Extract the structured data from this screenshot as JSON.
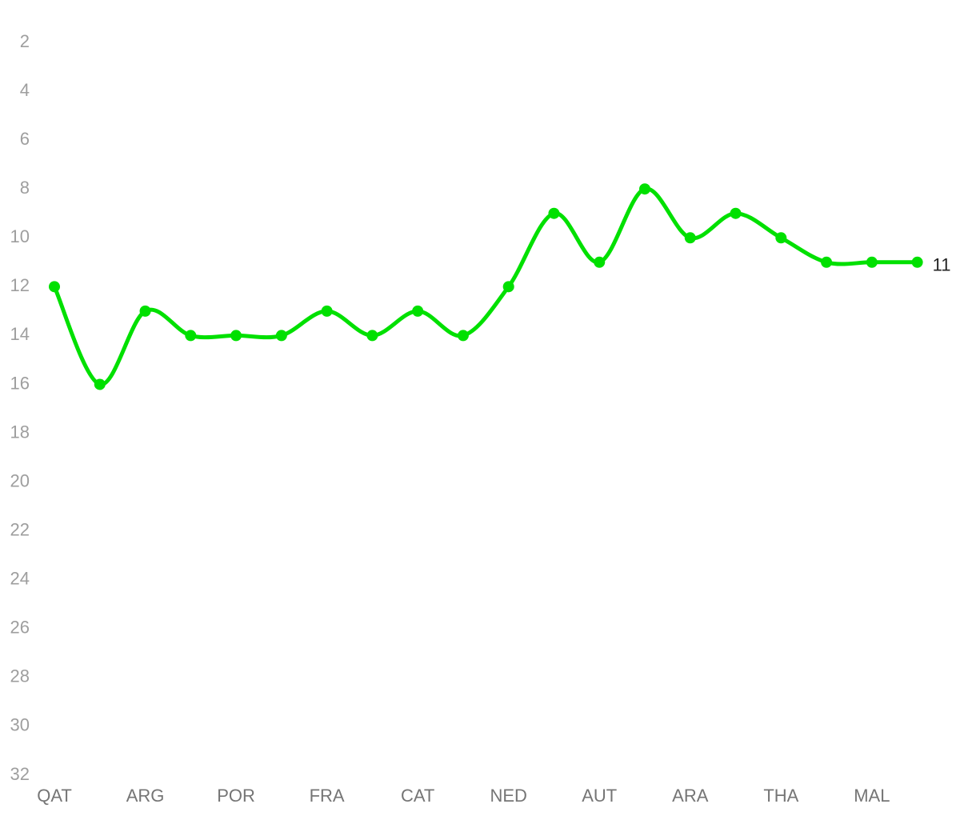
{
  "chart_data": {
    "type": "line",
    "categories": [
      "QAT",
      null,
      "ARG",
      null,
      "POR",
      null,
      "FRA",
      null,
      "CAT",
      null,
      "NED",
      null,
      "AUT",
      null,
      "ARA",
      null,
      "THA",
      null,
      "MAL",
      null
    ],
    "values": [
      12,
      16,
      13,
      14,
      14,
      14,
      13,
      14,
      13,
      14,
      12,
      9,
      11,
      8,
      10,
      9,
      10,
      11,
      11,
      11
    ],
    "color": "#00e000",
    "ylim": [
      2,
      32
    ],
    "inverted": true,
    "yticks": [
      2,
      4,
      6,
      8,
      10,
      12,
      14,
      16,
      18,
      20,
      22,
      24,
      26,
      28,
      30,
      32
    ],
    "grid": false
  }
}
